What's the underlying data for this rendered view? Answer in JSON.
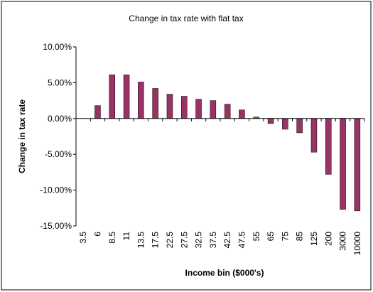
{
  "chart_data": {
    "type": "bar",
    "title": "Change in tax rate with flat tax",
    "xlabel": "Income bin ($000's)",
    "ylabel": "Change in tax rate",
    "categories": [
      "3.5",
      "6",
      "8.5",
      "11",
      "13.5",
      "17.5",
      "22.5",
      "27.5",
      "32.5",
      "37.5",
      "42.5",
      "47.5",
      "55",
      "65",
      "75",
      "85",
      "125",
      "200",
      "3000",
      "10000"
    ],
    "values": [
      0.0,
      0.018,
      0.061,
      0.061,
      0.051,
      0.042,
      0.034,
      0.031,
      0.027,
      0.025,
      0.02,
      0.012,
      0.002,
      -0.007,
      -0.015,
      -0.02,
      -0.047,
      -0.078,
      -0.127,
      -0.129
    ],
    "ylim": [
      -0.15,
      0.1
    ],
    "yticks": [
      0.1,
      0.05,
      0.0,
      -0.05,
      -0.1,
      -0.15
    ],
    "ytick_labels": [
      "10.00%",
      "5.00%",
      "0.00%",
      "-5.00%",
      "-10.00%",
      "-15.00%"
    ],
    "grid": false,
    "legend": "none",
    "colors": {
      "bar_fill": "#993366",
      "bar_stroke": "#000000",
      "axis": "#000000",
      "frame": "#000000",
      "background": "#ffffff"
    }
  }
}
